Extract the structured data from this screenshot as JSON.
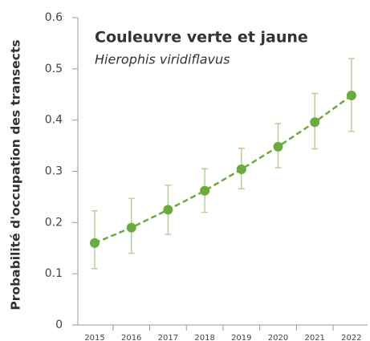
{
  "chart_data": {
    "type": "line",
    "title": "Couleuvre verte et jaune",
    "subtitle": "Hierophis viridiflavus",
    "y_label": "Probabilité d'occupation des transects",
    "categories": [
      "2015",
      "2016",
      "2017",
      "2018",
      "2019",
      "2020",
      "2021",
      "2022"
    ],
    "series": [
      {
        "color": "#6aab3c",
        "error_color": "#b3d39a",
        "values": [
          0.16,
          0.19,
          0.225,
          0.262,
          0.304,
          0.348,
          0.396,
          0.448
        ],
        "lower": [
          0.11,
          0.14,
          0.177,
          0.22,
          0.266,
          0.307,
          0.344,
          0.378
        ],
        "upper": [
          0.223,
          0.247,
          0.273,
          0.305,
          0.345,
          0.393,
          0.452,
          0.52
        ]
      }
    ],
    "ylim": [
      0,
      0.6
    ],
    "yticks": [
      0,
      0.1,
      0.2,
      0.3,
      0.4,
      0.5,
      0.6
    ]
  }
}
